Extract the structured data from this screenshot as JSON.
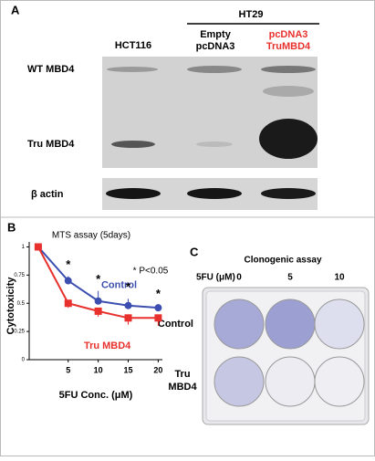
{
  "panel_a": {
    "label": "A",
    "group": "HT29",
    "lanes": [
      "HCT116",
      [
        "Empty",
        "pcDNA3"
      ],
      [
        "pcDNA3",
        "TruMBD4"
      ]
    ],
    "rows": [
      "WT MBD4",
      "Tru MBD4",
      "β actin"
    ]
  },
  "chart_data": {
    "type": "line",
    "label": "B",
    "title": "MTS assay (5days)",
    "x_label": "5FU Conc. (μM)",
    "y_label": "Cytotoxicity",
    "x": [
      0,
      5,
      10,
      15,
      20
    ],
    "xlim": [
      -1.5,
      20.7
    ],
    "xticks": [
      5,
      10,
      15,
      20
    ],
    "ylim": [
      0,
      1.02
    ],
    "yticks": [
      0,
      0.25,
      0.5,
      0.75,
      1
    ],
    "series": [
      {
        "name": "Control",
        "color": "#3c4fb0",
        "marker": "circle",
        "values": [
          1,
          0.7,
          0.52,
          0.48,
          0.46
        ],
        "errors": [
          0,
          0.04,
          0.09,
          0.06,
          0.02
        ]
      },
      {
        "name": "Tru MBD4",
        "color": "#e8312d",
        "marker": "square",
        "values": [
          1,
          0.5,
          0.43,
          0.37,
          0.37
        ],
        "errors": [
          0,
          0.04,
          0.05,
          0.06,
          0.07
        ]
      }
    ],
    "significance_marks": [
      null,
      "*",
      "*",
      "*",
      "*"
    ],
    "significance_note": "* P<0.05"
  },
  "panel_c": {
    "label": "C",
    "title": "Clonogenic assay",
    "dose_label": "5FU (μM)",
    "doses": [
      "0",
      "5",
      "10"
    ],
    "rows": [
      "Control",
      [
        "Tru",
        "MBD4"
      ]
    ]
  }
}
